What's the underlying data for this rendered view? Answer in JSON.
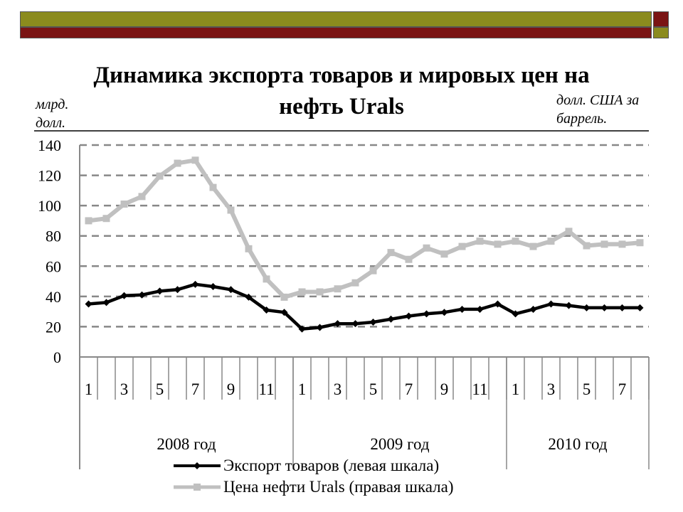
{
  "chart_data": {
    "type": "line",
    "title": "Динамика экспорта товаров и мировых цен на нефть Urals",
    "ylabel_left": "млрд. долл.",
    "ylabel_right": "долл. США за баррель.",
    "ylim": [
      0,
      140
    ],
    "yticks": [
      "0",
      "20",
      "40",
      "60",
      "80",
      "100",
      "120",
      "140"
    ],
    "grid": true,
    "legend_position": "bottom",
    "month_labels": [
      "1",
      "",
      "3",
      "",
      "5",
      "",
      "7",
      "",
      "9",
      "",
      "11",
      "",
      "1",
      "",
      "3",
      "",
      "5",
      "",
      "7",
      "",
      "9",
      "",
      "11",
      "",
      "1",
      "",
      "3",
      "",
      "5",
      "",
      "7",
      ""
    ],
    "year_groups": [
      {
        "label": "2008 год",
        "months": 12
      },
      {
        "label": "2009 год",
        "months": 12
      },
      {
        "label": "2010 год",
        "months": 8
      }
    ],
    "series": [
      {
        "name": "Экспорт товаров (левая шкала)",
        "color": "#000000",
        "values": [
          35,
          36,
          40.5,
          41,
          43.5,
          44.5,
          48,
          46.5,
          44.5,
          39.5,
          31,
          29.5,
          18.5,
          19.5,
          22,
          22,
          23,
          25,
          27,
          28.5,
          29.5,
          31.5,
          31.5,
          35,
          28.5,
          31.5,
          35,
          34,
          32.5,
          32.5,
          32.5,
          32.5
        ]
      },
      {
        "name": "Цена нефти Urals (правая шкала)",
        "color": "#C0C0C0",
        "values": [
          90,
          91.5,
          101,
          106,
          119.5,
          128,
          130,
          112,
          97,
          71.5,
          51.5,
          39.5,
          43,
          43,
          45,
          49,
          57,
          69,
          64.5,
          72,
          68,
          73,
          76.5,
          74.5,
          76.5,
          73,
          76.5,
          83,
          73.5,
          74.5,
          74.5,
          75.5
        ]
      }
    ]
  },
  "legend": {
    "export_label": "Экспорт товаров (левая шкала)",
    "oil_label": "Цена нефти Urals (правая шкала)"
  }
}
